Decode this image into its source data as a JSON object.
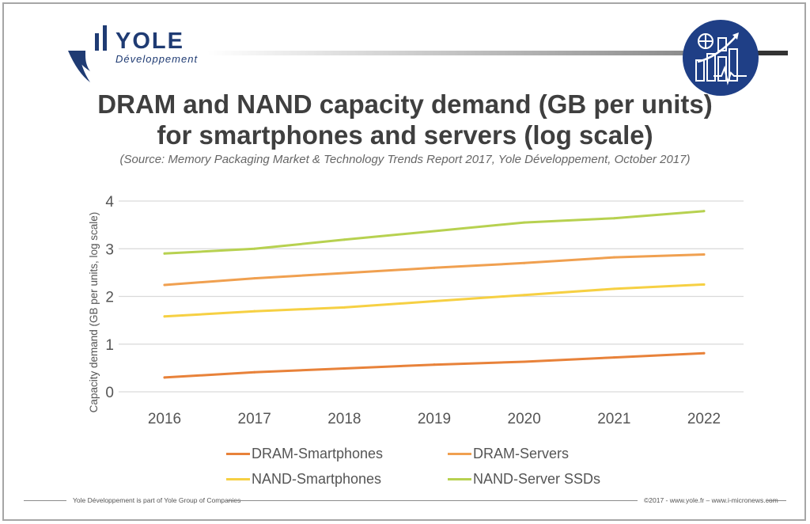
{
  "header": {
    "logo_word": "YOLE",
    "logo_sub": "Développement"
  },
  "title_lines": [
    "DRAM and NAND capacity demand (GB per units)",
    "for smartphones and servers (log scale)"
  ],
  "subtitle": "(Source: Memory Packaging Market & Technology Trends Report 2017, Yole Développement, October 2017)",
  "chart_data": {
    "type": "line",
    "title": "DRAM and NAND capacity demand (GB per units) for smartphones and servers (log scale)",
    "ylabel": "Capacity demand (GB per units, log scale)",
    "xlabel": "",
    "x": [
      "2016",
      "2017",
      "2018",
      "2019",
      "2020",
      "2021",
      "2022"
    ],
    "ylim": [
      0,
      4
    ],
    "yticks": [
      "0",
      "1",
      "2",
      "3",
      "4"
    ],
    "grid": true,
    "legend_position": "bottom",
    "series": [
      {
        "name": "DRAM-Smartphones",
        "color": "#e8823a",
        "values": [
          0.3,
          0.41,
          0.49,
          0.57,
          0.63,
          0.72,
          0.81
        ]
      },
      {
        "name": "DRAM-Servers",
        "color": "#f0a050",
        "values": [
          2.24,
          2.38,
          2.49,
          2.6,
          2.7,
          2.82,
          2.88
        ]
      },
      {
        "name": "NAND-Smartphones",
        "color": "#f6d043",
        "values": [
          1.58,
          1.69,
          1.77,
          1.9,
          2.03,
          2.16,
          2.25
        ]
      },
      {
        "name": "NAND-Server SSDs",
        "color": "#b7d150",
        "values": [
          2.9,
          3.0,
          3.19,
          3.37,
          3.55,
          3.64,
          3.79
        ]
      }
    ]
  },
  "footer": {
    "left": "Yole Développement is part of Yole Group of Companies",
    "right": "©2017 - www.yole.fr – www.i-micronews.com"
  }
}
